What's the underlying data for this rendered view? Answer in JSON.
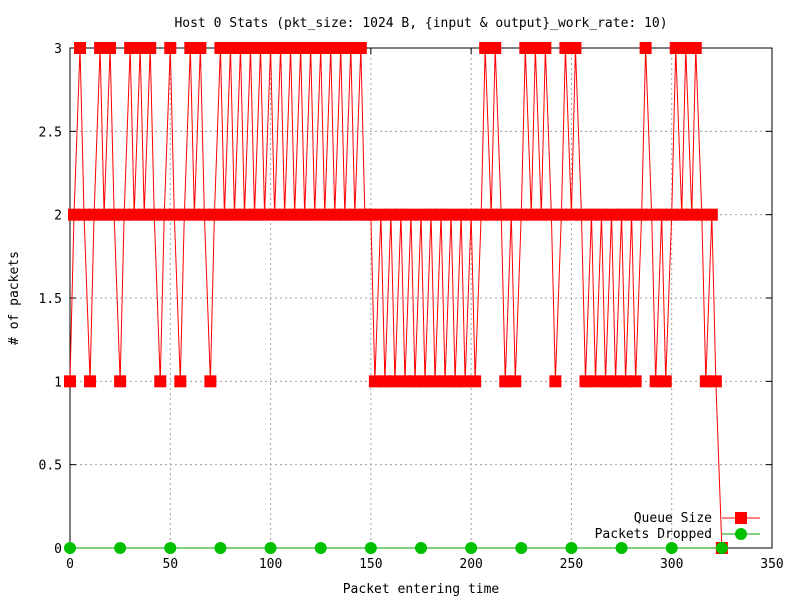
{
  "chart_data": {
    "type": "line",
    "title": "Host 0 Stats (pkt_size: 1024 B, {input & output}_work_rate: 10)",
    "xlabel": "Packet entering time",
    "ylabel": "# of packets",
    "xlim": [
      0,
      350
    ],
    "ylim": [
      0,
      3
    ],
    "x_ticks": [
      "0",
      "50",
      "100",
      "150",
      "200",
      "250",
      "300",
      "350"
    ],
    "x_tick_values": [
      0,
      50,
      100,
      150,
      200,
      250,
      300,
      350
    ],
    "y_ticks": [
      "0",
      "0.5",
      "1",
      "1.5",
      "2",
      "2.5",
      "3"
    ],
    "y_tick_values": [
      0,
      0.5,
      1,
      1.5,
      2,
      2.5,
      3
    ],
    "grid": true,
    "legend_position": "bottom-right",
    "series": [
      {
        "name": "Queue Size",
        "color": "#ff0000",
        "marker": "square",
        "x": [
          0,
          2,
          5,
          7,
          10,
          12,
          15,
          17,
          20,
          22,
          25,
          27,
          30,
          32,
          35,
          37,
          40,
          42,
          45,
          47,
          50,
          52,
          55,
          57,
          60,
          62,
          65,
          67,
          70,
          72,
          75,
          77,
          80,
          82,
          85,
          87,
          90,
          92,
          95,
          97,
          100,
          102,
          105,
          107,
          110,
          112,
          115,
          117,
          120,
          122,
          125,
          127,
          130,
          132,
          135,
          137,
          140,
          142,
          145,
          147,
          150,
          152,
          155,
          157,
          160,
          162,
          165,
          167,
          170,
          172,
          175,
          177,
          180,
          182,
          185,
          187,
          190,
          192,
          195,
          197,
          200,
          202,
          205,
          207,
          210,
          212,
          215,
          217,
          220,
          222,
          225,
          227,
          230,
          232,
          235,
          237,
          240,
          242,
          245,
          247,
          250,
          252,
          255,
          257,
          260,
          262,
          265,
          267,
          270,
          272,
          275,
          277,
          280,
          282,
          285,
          287,
          290,
          292,
          295,
          297,
          300,
          302,
          305,
          307,
          310,
          312,
          315,
          317,
          320,
          322,
          325
        ],
        "values": [
          1,
          2,
          3,
          2,
          1,
          2,
          3,
          2,
          3,
          2,
          1,
          2,
          3,
          2,
          3,
          2,
          3,
          2,
          1,
          2,
          3,
          2,
          1,
          2,
          3,
          2,
          3,
          2,
          1,
          2,
          3,
          2,
          3,
          2,
          3,
          2,
          3,
          2,
          3,
          2,
          3,
          2,
          3,
          2,
          3,
          2,
          3,
          2,
          3,
          2,
          3,
          2,
          3,
          2,
          3,
          2,
          3,
          2,
          3,
          2,
          2,
          1,
          2,
          1,
          2,
          1,
          2,
          1,
          2,
          1,
          2,
          1,
          2,
          1,
          2,
          1,
          2,
          1,
          2,
          1,
          2,
          1,
          2,
          3,
          2,
          3,
          2,
          1,
          2,
          1,
          2,
          3,
          2,
          3,
          2,
          3,
          2,
          1,
          2,
          3,
          2,
          3,
          2,
          1,
          2,
          1,
          2,
          1,
          2,
          1,
          2,
          1,
          2,
          1,
          2,
          3,
          2,
          1,
          2,
          1,
          2,
          3,
          2,
          3,
          2,
          3,
          2,
          1,
          2,
          1,
          0
        ]
      },
      {
        "name": "Packets Dropped",
        "color": "#00a000",
        "marker": "circle",
        "x": [
          0,
          25,
          50,
          75,
          100,
          125,
          150,
          175,
          200,
          225,
          250,
          275,
          300,
          325
        ],
        "values": [
          0,
          0,
          0,
          0,
          0,
          0,
          0,
          0,
          0,
          0,
          0,
          0,
          0,
          0
        ]
      }
    ]
  }
}
